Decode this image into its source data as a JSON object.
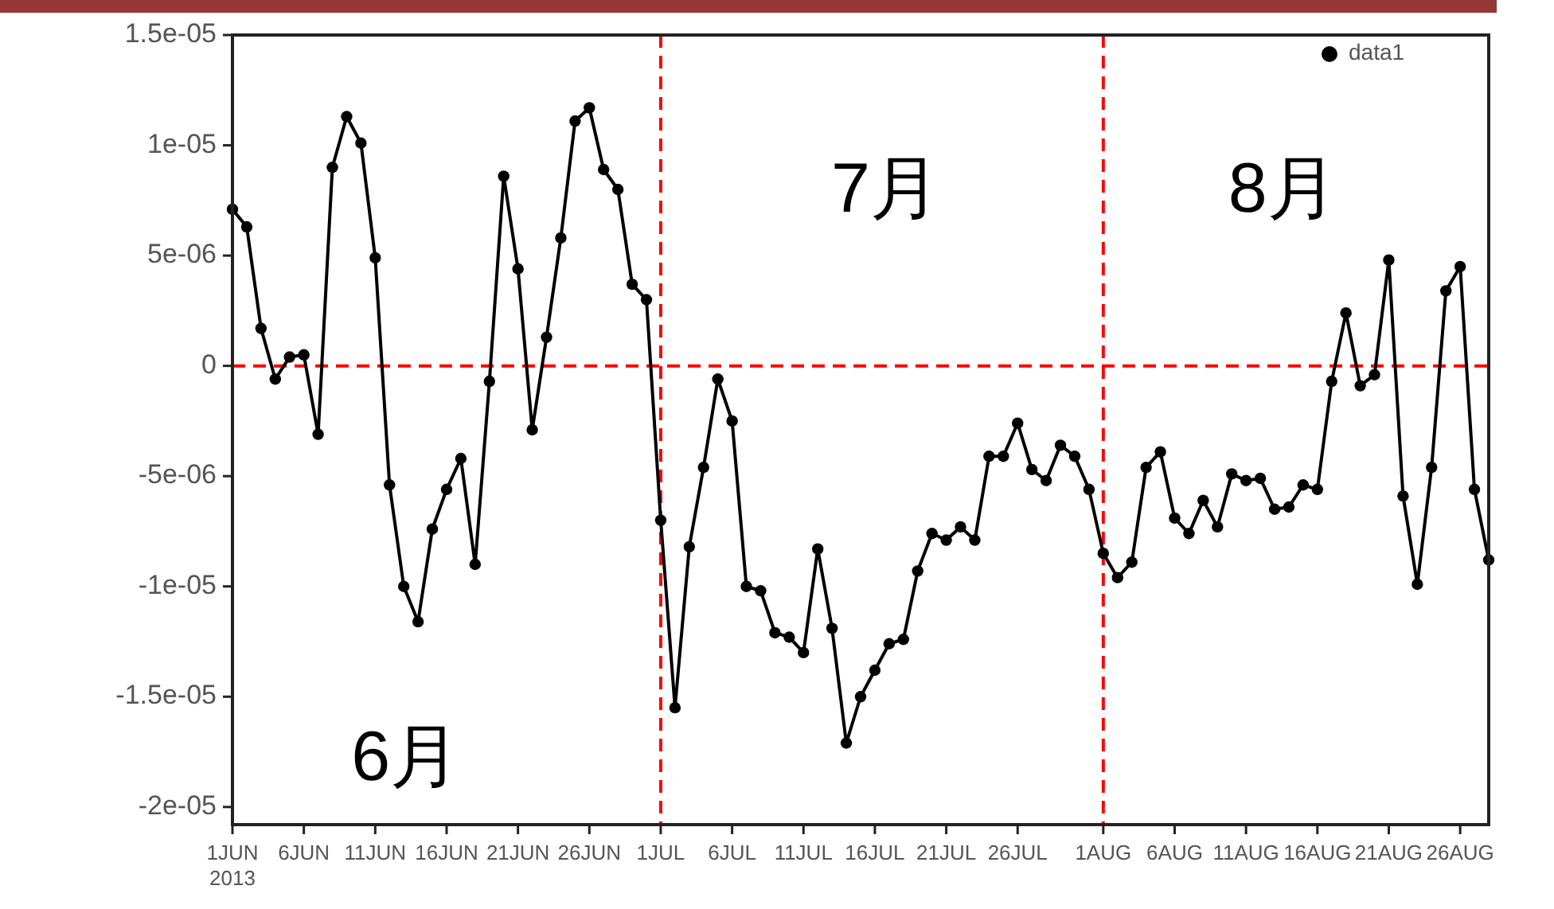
{
  "chart_data": {
    "type": "line",
    "marker": "circle",
    "line_style": "solid",
    "grid": false,
    "legend": "top right",
    "x": [
      "2013-06-01",
      "2013-06-02",
      "2013-06-03",
      "2013-06-04",
      "2013-06-05",
      "2013-06-06",
      "2013-06-07",
      "2013-06-08",
      "2013-06-09",
      "2013-06-10",
      "2013-06-11",
      "2013-06-12",
      "2013-06-13",
      "2013-06-14",
      "2013-06-15",
      "2013-06-16",
      "2013-06-17",
      "2013-06-18",
      "2013-06-19",
      "2013-06-20",
      "2013-06-21",
      "2013-06-22",
      "2013-06-23",
      "2013-06-24",
      "2013-06-25",
      "2013-06-26",
      "2013-06-27",
      "2013-06-28",
      "2013-06-29",
      "2013-06-30",
      "2013-07-01",
      "2013-07-02",
      "2013-07-03",
      "2013-07-04",
      "2013-07-05",
      "2013-07-06",
      "2013-07-07",
      "2013-07-08",
      "2013-07-09",
      "2013-07-10",
      "2013-07-11",
      "2013-07-12",
      "2013-07-13",
      "2013-07-14",
      "2013-07-15",
      "2013-07-16",
      "2013-07-17",
      "2013-07-18",
      "2013-07-19",
      "2013-07-20",
      "2013-07-21",
      "2013-07-22",
      "2013-07-23",
      "2013-07-24",
      "2013-07-25",
      "2013-07-26",
      "2013-07-27",
      "2013-07-28",
      "2013-07-29",
      "2013-07-30",
      "2013-07-31",
      "2013-08-01",
      "2013-08-02",
      "2013-08-03",
      "2013-08-04",
      "2013-08-05",
      "2013-08-06",
      "2013-08-07",
      "2013-08-08",
      "2013-08-09",
      "2013-08-10",
      "2013-08-11",
      "2013-08-12",
      "2013-08-13",
      "2013-08-14",
      "2013-08-15",
      "2013-08-16",
      "2013-08-17",
      "2013-08-18",
      "2013-08-19",
      "2013-08-20",
      "2013-08-21",
      "2013-08-22",
      "2013-08-23",
      "2013-08-24",
      "2013-08-25",
      "2013-08-26",
      "2013-08-27",
      "2013-08-28"
    ],
    "series": [
      {
        "name": "data1",
        "color": "#000000",
        "values": [
          7.1e-06,
          6.3e-06,
          1.7e-06,
          -6e-07,
          4e-07,
          5e-07,
          -3.1e-06,
          9e-06,
          1.13e-05,
          1.01e-05,
          4.9e-06,
          -5.4e-06,
          -1e-05,
          -1.16e-05,
          -7.4e-06,
          -5.6e-06,
          -4.2e-06,
          -9e-06,
          -7e-07,
          8.6e-06,
          4.4e-06,
          -2.9e-06,
          1.3e-06,
          5.8e-06,
          1.11e-05,
          1.17e-05,
          8.9e-06,
          8e-06,
          3.7e-06,
          3e-06,
          -7e-06,
          -1.55e-05,
          -8.2e-06,
          -4.6e-06,
          -6e-07,
          -2.5e-06,
          -1e-05,
          -1.02e-05,
          -1.21e-05,
          -1.23e-05,
          -1.3e-05,
          -8.3e-06,
          -1.19e-05,
          -1.71e-05,
          -1.5e-05,
          -1.38e-05,
          -1.26e-05,
          -1.24e-05,
          -9.3e-06,
          -7.6e-06,
          -7.9e-06,
          -7.3e-06,
          -7.9e-06,
          -4.1e-06,
          -4.1e-06,
          -2.6e-06,
          -4.7e-06,
          -5.2e-06,
          -3.6e-06,
          -4.1e-06,
          -5.6e-06,
          -8.5e-06,
          -9.6e-06,
          -8.9e-06,
          -4.6e-06,
          -3.9e-06,
          -6.9e-06,
          -7.6e-06,
          -6.1e-06,
          -7.3e-06,
          -4.9e-06,
          -5.2e-06,
          -5.1e-06,
          -6.5e-06,
          -6.4e-06,
          -5.4e-06,
          -5.6e-06,
          -7e-07,
          2.4e-06,
          -9e-07,
          -4e-07,
          4.8e-06,
          -5.9e-06,
          -9.9e-06,
          -4.6e-06,
          3.4e-06,
          4.5e-06,
          -5.6e-06,
          -8.8e-06
        ]
      }
    ],
    "xlim": [
      "2013-06-01",
      "2013-08-28"
    ],
    "xticks": [
      {
        "value": "2013-06-01",
        "label": "1JUN\n2013"
      },
      {
        "value": "2013-06-06",
        "label": "6JUN"
      },
      {
        "value": "2013-06-11",
        "label": "11JUN"
      },
      {
        "value": "2013-06-16",
        "label": "16JUN"
      },
      {
        "value": "2013-06-21",
        "label": "21JUN"
      },
      {
        "value": "2013-06-26",
        "label": "26JUN"
      },
      {
        "value": "2013-07-01",
        "label": "1JUL"
      },
      {
        "value": "2013-07-06",
        "label": "6JUL"
      },
      {
        "value": "2013-07-11",
        "label": "11JUL"
      },
      {
        "value": "2013-07-16",
        "label": "16JUL"
      },
      {
        "value": "2013-07-21",
        "label": "21JUL"
      },
      {
        "value": "2013-07-26",
        "label": "26JUL"
      },
      {
        "value": "2013-08-01",
        "label": "1AUG"
      },
      {
        "value": "2013-08-06",
        "label": "6AUG"
      },
      {
        "value": "2013-08-11",
        "label": "11AUG"
      },
      {
        "value": "2013-08-16",
        "label": "16AUG"
      },
      {
        "value": "2013-08-21",
        "label": "21AUG"
      },
      {
        "value": "2013-08-26",
        "label": "26AUG"
      }
    ],
    "ylim": [
      -2.08e-05,
      1.5e-05
    ],
    "yticks": [
      {
        "value": 1.5e-05,
        "label": "1.5e-05"
      },
      {
        "value": 1e-05,
        "label": "1e-05"
      },
      {
        "value": 5e-06,
        "label": "5e-06"
      },
      0,
      {
        "value": -5e-06,
        "label": "-5e-06"
      },
      {
        "value": -1e-05,
        "label": "-1e-05"
      },
      {
        "value": -1.5e-05,
        "label": "-1.5e-05"
      },
      {
        "value": -2e-05,
        "label": "-2e-05"
      }
    ],
    "ref_lines": [
      {
        "axis": "y",
        "value": 0,
        "color": "#ff0000",
        "line_style": "dashed"
      },
      {
        "axis": "x",
        "value": "2013-07-01",
        "color": "#ff0000",
        "line_style": "dashed"
      },
      {
        "axis": "x",
        "value": "2013-08-01",
        "color": "#ff0000",
        "line_style": "dashed"
      }
    ],
    "annotations": [
      "6月",
      "7月",
      "8月"
    ]
  }
}
